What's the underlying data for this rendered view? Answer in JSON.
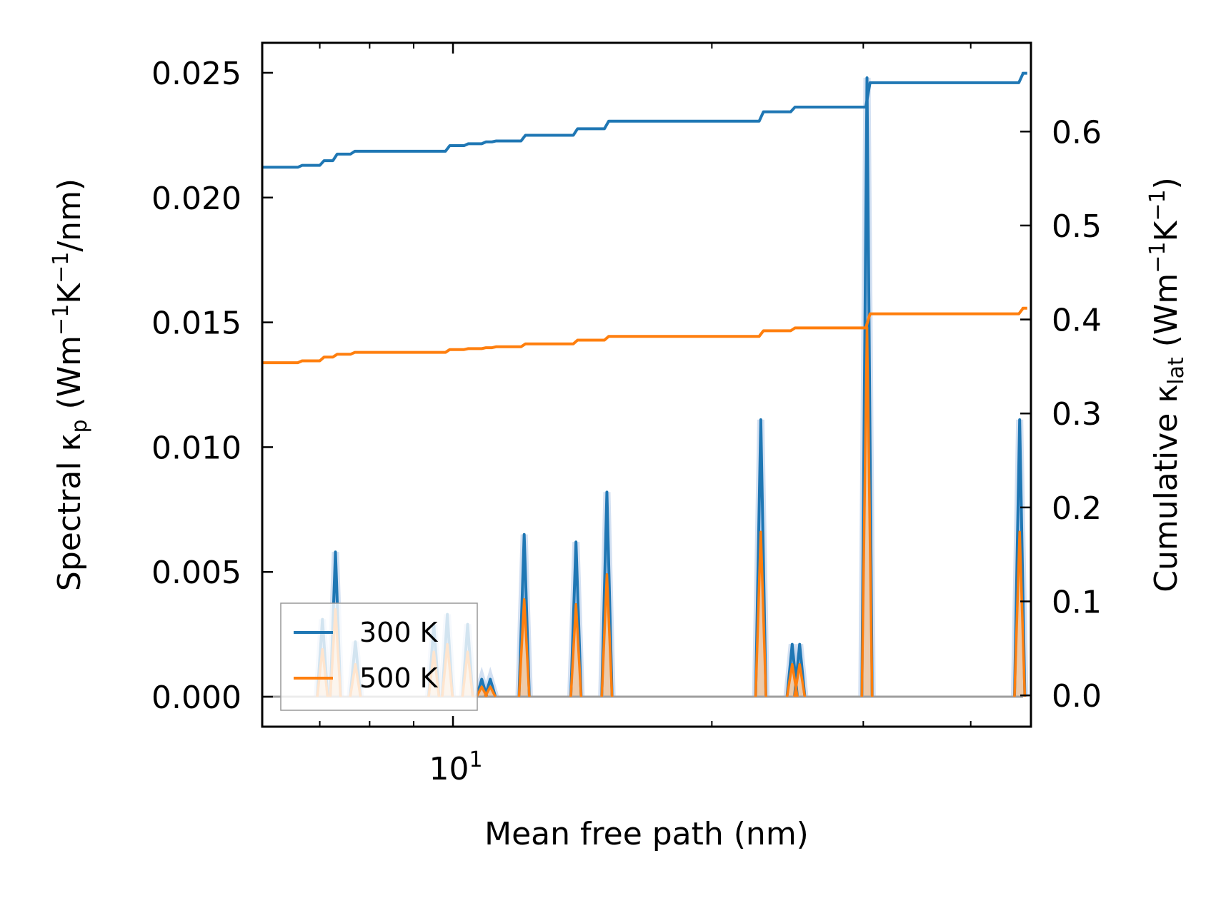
{
  "chart_data": {
    "type": "line",
    "xlabel": "Mean free path (nm)",
    "xscale": "log",
    "xlim": [
      6.0,
      47.0
    ],
    "x_tick_labels": [
      {
        "value": 10,
        "base": "10",
        "exp": "1"
      }
    ],
    "ylabel_left": {
      "pre": "Spectral κ",
      "sub": "p",
      "post": " (Wm",
      "sup1": "−1",
      "mid": "K",
      "sup2": "−1",
      "end": "/nm)"
    },
    "ylim_left": [
      -0.0012,
      0.0262
    ],
    "yticks_left": [
      "0.000",
      "0.005",
      "0.010",
      "0.015",
      "0.020",
      "0.025"
    ],
    "ylabel_right": {
      "pre": "Cumulative κ",
      "sub": "lat",
      "post": " (Wm",
      "sup1": "−1",
      "mid": "K",
      "sup2": "−1",
      "end": ")"
    },
    "ylim_right": [
      -0.0333,
      0.6944
    ],
    "yticks_right": [
      "0.0",
      "0.1",
      "0.2",
      "0.3",
      "0.4",
      "0.5",
      "0.6"
    ],
    "legend": {
      "position": "lower-left",
      "entries": [
        "300 K",
        "500 K"
      ]
    },
    "colors": {
      "300 K": "#1f77b4",
      "500 K": "#ff7f0e",
      "fill_300": "#aec7e8",
      "fill_500": "#f5c9a0"
    },
    "series": [
      {
        "name": "300 K",
        "axis": "left",
        "kind": "spectral",
        "peaks": [
          {
            "x": 7.05,
            "y": 0.0031
          },
          {
            "x": 7.3,
            "y": 0.0058
          },
          {
            "x": 7.7,
            "y": 0.0022
          },
          {
            "x": 9.5,
            "y": 0.0029
          },
          {
            "x": 9.85,
            "y": 0.0033
          },
          {
            "x": 10.4,
            "y": 0.0029
          },
          {
            "x": 10.8,
            "y": 0.0007
          },
          {
            "x": 11.05,
            "y": 0.0007
          },
          {
            "x": 12.1,
            "y": 0.0065
          },
          {
            "x": 13.9,
            "y": 0.0062
          },
          {
            "x": 15.1,
            "y": 0.0082
          },
          {
            "x": 22.8,
            "y": 0.0111
          },
          {
            "x": 24.8,
            "y": 0.0021
          },
          {
            "x": 25.3,
            "y": 0.0021
          },
          {
            "x": 30.3,
            "y": 0.0248
          },
          {
            "x": 45.6,
            "y": 0.0111
          }
        ]
      },
      {
        "name": "500 K",
        "axis": "left",
        "kind": "spectral",
        "peaks": [
          {
            "x": 7.05,
            "y": 0.0019
          },
          {
            "x": 7.3,
            "y": 0.0035
          },
          {
            "x": 7.7,
            "y": 0.0013
          },
          {
            "x": 9.5,
            "y": 0.0018
          },
          {
            "x": 9.85,
            "y": 0.0021
          },
          {
            "x": 10.4,
            "y": 0.0018
          },
          {
            "x": 10.8,
            "y": 0.0004
          },
          {
            "x": 11.05,
            "y": 0.0004
          },
          {
            "x": 12.1,
            "y": 0.0039
          },
          {
            "x": 13.9,
            "y": 0.0037
          },
          {
            "x": 15.1,
            "y": 0.0049
          },
          {
            "x": 22.8,
            "y": 0.0066
          },
          {
            "x": 24.8,
            "y": 0.0013
          },
          {
            "x": 25.3,
            "y": 0.0013
          },
          {
            "x": 30.3,
            "y": 0.0148
          },
          {
            "x": 45.6,
            "y": 0.0066
          }
        ]
      },
      {
        "name": "300 K",
        "axis": "right",
        "kind": "cumulative",
        "x": [
          6.0,
          6.6,
          7.0,
          7.25,
          7.6,
          9.4,
          9.8,
          10.3,
          10.8,
          11.1,
          12.0,
          13.8,
          15.0,
          22.7,
          24.7,
          30.2,
          45.5,
          46.0
        ],
        "y": [
          0.562,
          0.564,
          0.569,
          0.576,
          0.579,
          0.579,
          0.585,
          0.587,
          0.589,
          0.59,
          0.596,
          0.603,
          0.611,
          0.621,
          0.626,
          0.652,
          0.662,
          0.662
        ]
      },
      {
        "name": "500 K",
        "axis": "right",
        "kind": "cumulative",
        "x": [
          6.0,
          6.6,
          7.0,
          7.25,
          7.6,
          9.4,
          9.8,
          10.3,
          10.8,
          11.1,
          12.0,
          13.8,
          15.0,
          22.7,
          24.7,
          30.2,
          45.5,
          46.0
        ],
        "y": [
          0.354,
          0.356,
          0.36,
          0.363,
          0.365,
          0.365,
          0.368,
          0.369,
          0.37,
          0.371,
          0.374,
          0.378,
          0.382,
          0.388,
          0.391,
          0.406,
          0.412,
          0.412
        ]
      }
    ]
  }
}
